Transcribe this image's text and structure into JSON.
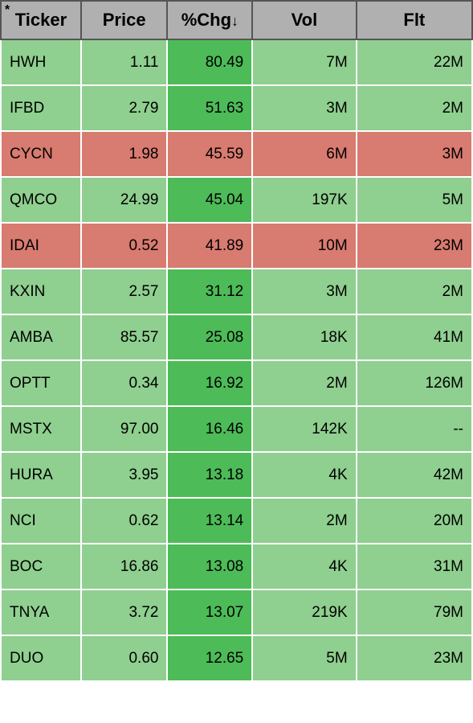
{
  "columns": {
    "ticker": "Ticker",
    "price": "Price",
    "chg": "%Chg",
    "sort_arrow": "↓",
    "vol": "Vol",
    "flt": "Flt"
  },
  "asterisk": "*",
  "colors": {
    "header_bg": "#b0b0b0",
    "header_border": "#555555",
    "cell_border": "#ffffff",
    "green_light": "#8fcf8f",
    "green_dark": "#4dbb58",
    "red": "#d87b70"
  },
  "column_widths": {
    "ticker": 100,
    "price": 108,
    "chg": 106,
    "vol": 130,
    "flt": 145
  },
  "rows": [
    {
      "ticker": "HWH",
      "price": "1.11",
      "chg": "80.49",
      "vol": "7M",
      "flt": "22M",
      "row_color": "green_light",
      "chg_color": "green_dark"
    },
    {
      "ticker": "IFBD",
      "price": "2.79",
      "chg": "51.63",
      "vol": "3M",
      "flt": "2M",
      "row_color": "green_light",
      "chg_color": "green_dark"
    },
    {
      "ticker": "CYCN",
      "price": "1.98",
      "chg": "45.59",
      "vol": "6M",
      "flt": "3M",
      "row_color": "red",
      "chg_color": "red"
    },
    {
      "ticker": "QMCO",
      "price": "24.99",
      "chg": "45.04",
      "vol": "197K",
      "flt": "5M",
      "row_color": "green_light",
      "chg_color": "green_dark"
    },
    {
      "ticker": "IDAI",
      "price": "0.52",
      "chg": "41.89",
      "vol": "10M",
      "flt": "23M",
      "row_color": "red",
      "chg_color": "red"
    },
    {
      "ticker": "KXIN",
      "price": "2.57",
      "chg": "31.12",
      "vol": "3M",
      "flt": "2M",
      "row_color": "green_light",
      "chg_color": "green_dark"
    },
    {
      "ticker": "AMBA",
      "price": "85.57",
      "chg": "25.08",
      "vol": "18K",
      "flt": "41M",
      "row_color": "green_light",
      "chg_color": "green_dark"
    },
    {
      "ticker": "OPTT",
      "price": "0.34",
      "chg": "16.92",
      "vol": "2M",
      "flt": "126M",
      "row_color": "green_light",
      "chg_color": "green_dark"
    },
    {
      "ticker": "MSTX",
      "price": "97.00",
      "chg": "16.46",
      "vol": "142K",
      "flt": "--",
      "row_color": "green_light",
      "chg_color": "green_dark"
    },
    {
      "ticker": "HURA",
      "price": "3.95",
      "chg": "13.18",
      "vol": "4K",
      "flt": "42M",
      "row_color": "green_light",
      "chg_color": "green_dark"
    },
    {
      "ticker": "NCI",
      "price": "0.62",
      "chg": "13.14",
      "vol": "2M",
      "flt": "20M",
      "row_color": "green_light",
      "chg_color": "green_dark"
    },
    {
      "ticker": "BOC",
      "price": "16.86",
      "chg": "13.08",
      "vol": "4K",
      "flt": "31M",
      "row_color": "green_light",
      "chg_color": "green_dark"
    },
    {
      "ticker": "TNYA",
      "price": "3.72",
      "chg": "13.07",
      "vol": "219K",
      "flt": "79M",
      "row_color": "green_light",
      "chg_color": "green_dark"
    },
    {
      "ticker": "DUO",
      "price": "0.60",
      "chg": "12.65",
      "vol": "5M",
      "flt": "23M",
      "row_color": "green_light",
      "chg_color": "green_dark"
    }
  ]
}
